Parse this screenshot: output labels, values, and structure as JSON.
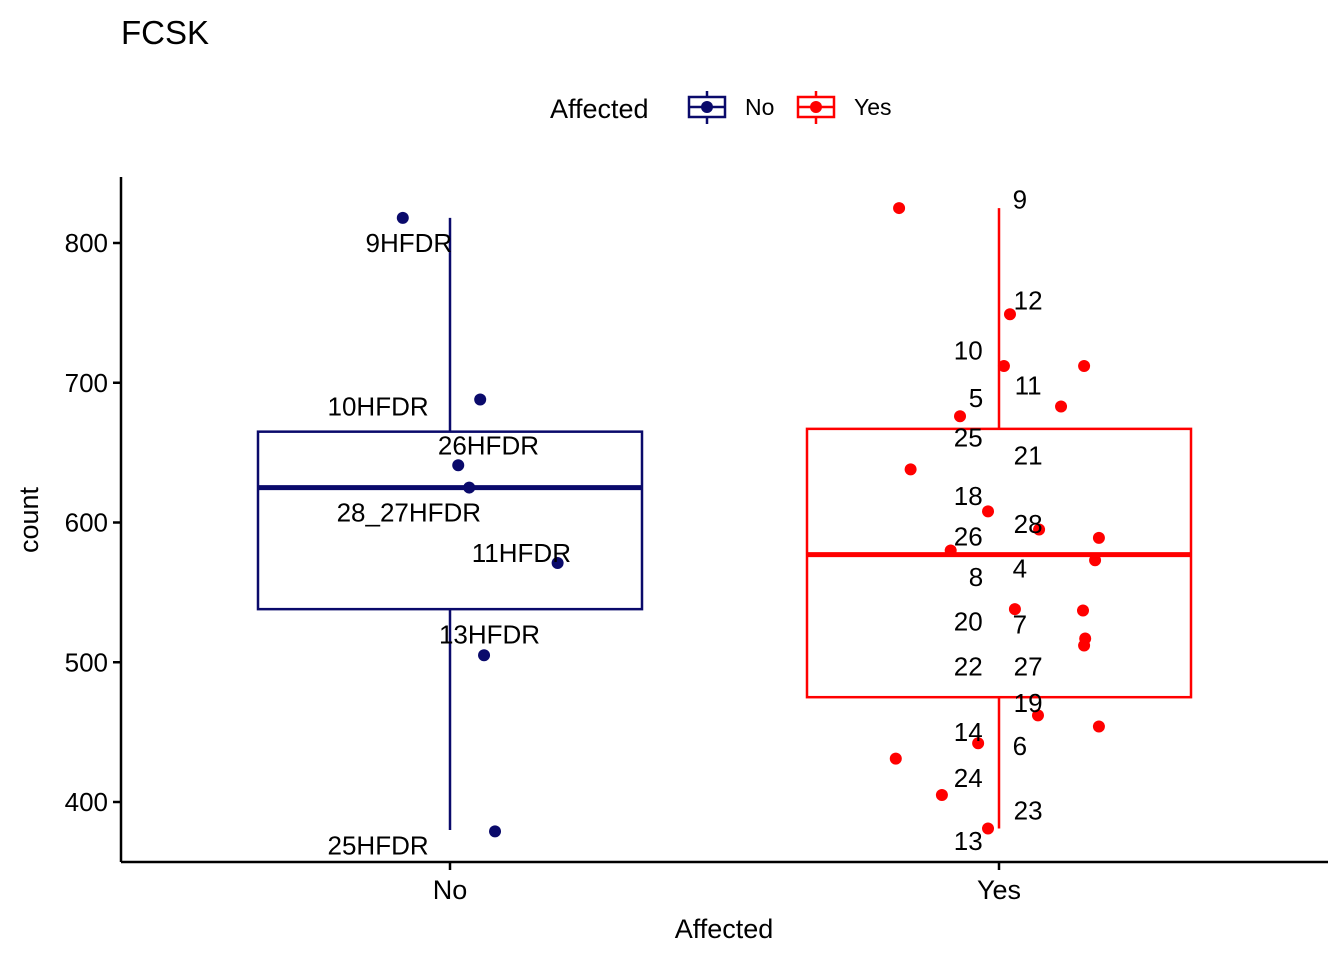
{
  "chart_data": {
    "type": "boxplot",
    "title": "FCSK",
    "xlabel": "Affected",
    "ylabel": "count",
    "ylim": [
      355,
      845
    ],
    "yticks": [
      400,
      500,
      600,
      700,
      800
    ],
    "categories": [
      "No",
      "Yes"
    ],
    "grid": false,
    "legend": {
      "title": "Affected",
      "position": "top",
      "entries": [
        {
          "label": "No",
          "color": "#0a0a6b"
        },
        {
          "label": "Yes",
          "color": "#ff0000"
        }
      ]
    },
    "boxes": [
      {
        "category": "No",
        "color": "#0a0a6b",
        "q1": 538,
        "median": 625,
        "q3": 665,
        "whisker_low": 380,
        "whisker_high": 818
      },
      {
        "category": "Yes",
        "color": "#ff0000",
        "q1": 475,
        "median": 577,
        "q3": 667,
        "whisker_low": 381,
        "whisker_high": 825
      }
    ],
    "points": [
      {
        "category": "No",
        "jitter": -0.086,
        "y": 818
      },
      {
        "category": "No",
        "jitter": 0.055,
        "y": 688
      },
      {
        "category": "No",
        "jitter": 0.015,
        "y": 641
      },
      {
        "category": "No",
        "jitter": 0.035,
        "y": 625
      },
      {
        "category": "No",
        "jitter": 0.196,
        "y": 571
      },
      {
        "category": "No",
        "jitter": 0.062,
        "y": 505
      },
      {
        "category": "No",
        "jitter": 0.082,
        "y": 379
      },
      {
        "category": "Yes",
        "jitter": -0.182,
        "y": 825
      },
      {
        "category": "Yes",
        "jitter": 0.02,
        "y": 749
      },
      {
        "category": "Yes",
        "jitter": 0.009,
        "y": 712
      },
      {
        "category": "Yes",
        "jitter": 0.155,
        "y": 712
      },
      {
        "category": "Yes",
        "jitter": 0.113,
        "y": 683
      },
      {
        "category": "Yes",
        "jitter": -0.071,
        "y": 676
      },
      {
        "category": "Yes",
        "jitter": -0.161,
        "y": 638
      },
      {
        "category": "Yes",
        "jitter": -0.02,
        "y": 608
      },
      {
        "category": "Yes",
        "jitter": 0.073,
        "y": 595
      },
      {
        "category": "Yes",
        "jitter": 0.182,
        "y": 589
      },
      {
        "category": "Yes",
        "jitter": -0.088,
        "y": 580
      },
      {
        "category": "Yes",
        "jitter": 0.175,
        "y": 573
      },
      {
        "category": "Yes",
        "jitter": 0.029,
        "y": 538
      },
      {
        "category": "Yes",
        "jitter": 0.153,
        "y": 537
      },
      {
        "category": "Yes",
        "jitter": 0.157,
        "y": 517
      },
      {
        "category": "Yes",
        "jitter": 0.155,
        "y": 512
      },
      {
        "category": "Yes",
        "jitter": 0.071,
        "y": 462
      },
      {
        "category": "Yes",
        "jitter": 0.182,
        "y": 454
      },
      {
        "category": "Yes",
        "jitter": -0.038,
        "y": 442
      },
      {
        "category": "Yes",
        "jitter": -0.188,
        "y": 431
      },
      {
        "category": "Yes",
        "jitter": -0.104,
        "y": 405
      },
      {
        "category": "Yes",
        "jitter": -0.02,
        "y": 381
      }
    ],
    "point_labels": [
      {
        "text": "9HFDR",
        "category": "No",
        "dx": -0.075,
        "y": 800
      },
      {
        "text": "10HFDR",
        "category": "No",
        "dx": -0.131,
        "y": 683
      },
      {
        "text": "26HFDR",
        "category": "No",
        "dx": 0.07,
        "y": 655
      },
      {
        "text": "28_27HFDR",
        "category": "No",
        "dx": -0.075,
        "y": 607
      },
      {
        "text": "11HFDR",
        "category": "No",
        "dx": 0.13,
        "y": 578
      },
      {
        "text": "13HFDR",
        "category": "No",
        "dx": 0.072,
        "y": 520
      },
      {
        "text": "25HFDR",
        "category": "No",
        "dx": -0.131,
        "y": 369
      },
      {
        "text": "9",
        "category": "Yes",
        "dx": 0.038,
        "y": 831
      },
      {
        "text": "12",
        "category": "Yes",
        "dx": 0.053,
        "y": 759
      },
      {
        "text": "10",
        "category": "Yes",
        "dx": -0.056,
        "y": 723
      },
      {
        "text": "11",
        "category": "Yes",
        "dx": 0.053,
        "y": 698
      },
      {
        "text": "5",
        "category": "Yes",
        "dx": -0.042,
        "y": 689
      },
      {
        "text": "25",
        "category": "Yes",
        "dx": -0.056,
        "y": 661
      },
      {
        "text": "21",
        "category": "Yes",
        "dx": 0.053,
        "y": 648
      },
      {
        "text": "18",
        "category": "Yes",
        "dx": -0.056,
        "y": 619
      },
      {
        "text": "28",
        "category": "Yes",
        "dx": 0.053,
        "y": 599
      },
      {
        "text": "26",
        "category": "Yes",
        "dx": -0.056,
        "y": 590
      },
      {
        "text": "4",
        "category": "Yes",
        "dx": 0.038,
        "y": 567
      },
      {
        "text": "8",
        "category": "Yes",
        "dx": -0.042,
        "y": 561
      },
      {
        "text": "20",
        "category": "Yes",
        "dx": -0.056,
        "y": 529
      },
      {
        "text": "7",
        "category": "Yes",
        "dx": 0.038,
        "y": 527
      },
      {
        "text": "27",
        "category": "Yes",
        "dx": 0.053,
        "y": 497
      },
      {
        "text": "22",
        "category": "Yes",
        "dx": -0.056,
        "y": 497
      },
      {
        "text": "19",
        "category": "Yes",
        "dx": 0.053,
        "y": 471
      },
      {
        "text": "14",
        "category": "Yes",
        "dx": -0.056,
        "y": 450
      },
      {
        "text": "6",
        "category": "Yes",
        "dx": 0.038,
        "y": 440
      },
      {
        "text": "24",
        "category": "Yes",
        "dx": -0.056,
        "y": 417
      },
      {
        "text": "23",
        "category": "Yes",
        "dx": 0.053,
        "y": 394
      },
      {
        "text": "13",
        "category": "Yes",
        "dx": -0.056,
        "y": 372
      }
    ]
  }
}
